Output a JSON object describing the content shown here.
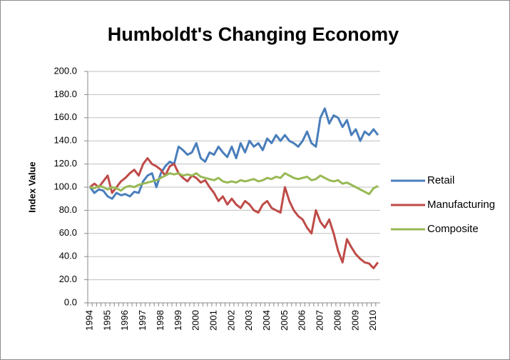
{
  "chart_data": {
    "type": "line",
    "title": "Humboldt's Changing Economy",
    "y_label": "Index Value",
    "categories": [
      "1994",
      null,
      null,
      null,
      "1995",
      null,
      null,
      null,
      "1996",
      null,
      null,
      null,
      "1997",
      null,
      null,
      null,
      "1998",
      null,
      null,
      null,
      "1999",
      null,
      null,
      null,
      "2000",
      null,
      null,
      null,
      "2001",
      null,
      null,
      null,
      "2002",
      null,
      null,
      null,
      "2003",
      null,
      null,
      null,
      "2004",
      null,
      null,
      null,
      "2005",
      null,
      null,
      null,
      "2006",
      null,
      null,
      null,
      "2007",
      null,
      null,
      null,
      "2008",
      null,
      null,
      null,
      "2009",
      null,
      null,
      null,
      "2010",
      null
    ],
    "series": [
      {
        "name": "Retail",
        "color": "#4a7ebb",
        "values": [
          100,
          95,
          98,
          97,
          92,
          90,
          95,
          93,
          94,
          92,
          96,
          95,
          105,
          110,
          112,
          100,
          112,
          118,
          122,
          120,
          135,
          132,
          128,
          130,
          138,
          125,
          122,
          130,
          128,
          135,
          130,
          126,
          135,
          125,
          138,
          130,
          140,
          135,
          138,
          132,
          142,
          138,
          145,
          140,
          145,
          140,
          138,
          135,
          140,
          148,
          138,
          135,
          160,
          168,
          155,
          162,
          160,
          152,
          158,
          145,
          150,
          140,
          148,
          145,
          150,
          145
        ]
      },
      {
        "name": "Manufacturing",
        "color": "#be4b48",
        "values": [
          100,
          103,
          100,
          105,
          110,
          95,
          100,
          105,
          108,
          112,
          115,
          110,
          120,
          125,
          120,
          118,
          115,
          110,
          118,
          120,
          112,
          108,
          105,
          110,
          108,
          104,
          106,
          100,
          95,
          88,
          92,
          85,
          90,
          85,
          82,
          88,
          85,
          80,
          78,
          85,
          88,
          82,
          80,
          78,
          100,
          88,
          80,
          75,
          72,
          65,
          60,
          80,
          70,
          65,
          72,
          60,
          45,
          35,
          55,
          48,
          42,
          38,
          35,
          34,
          30,
          35
        ]
      },
      {
        "name": "Composite",
        "color": "#98b954",
        "values": [
          100,
          99,
          101,
          100,
          98,
          100,
          99,
          97,
          100,
          101,
          100,
          102,
          103,
          104,
          105,
          106,
          108,
          110,
          112,
          111,
          112,
          110,
          111,
          110,
          112,
          109,
          108,
          107,
          106,
          108,
          105,
          104,
          105,
          104,
          106,
          105,
          106,
          107,
          105,
          106,
          108,
          107,
          109,
          108,
          112,
          110,
          108,
          107,
          108,
          109,
          106,
          107,
          110,
          108,
          106,
          105,
          106,
          103,
          104,
          102,
          100,
          98,
          96,
          94,
          99,
          101
        ]
      }
    ],
    "ylim": [
      0,
      200
    ],
    "yticks": [
      {
        "value": 0,
        "label": "0.0"
      },
      {
        "value": 20,
        "label": "20.0"
      },
      {
        "value": 40,
        "label": "40.0"
      },
      {
        "value": 60,
        "label": "60.0"
      },
      {
        "value": 80,
        "label": "80.0"
      },
      {
        "value": 100,
        "label": "100.0"
      },
      {
        "value": 120,
        "label": "120.0"
      },
      {
        "value": 140,
        "label": "140.0"
      },
      {
        "value": 160,
        "label": "160.0"
      },
      {
        "value": 180,
        "label": "180.0"
      },
      {
        "value": 200,
        "label": "200.0"
      }
    ],
    "grid": true,
    "legend": "right"
  }
}
